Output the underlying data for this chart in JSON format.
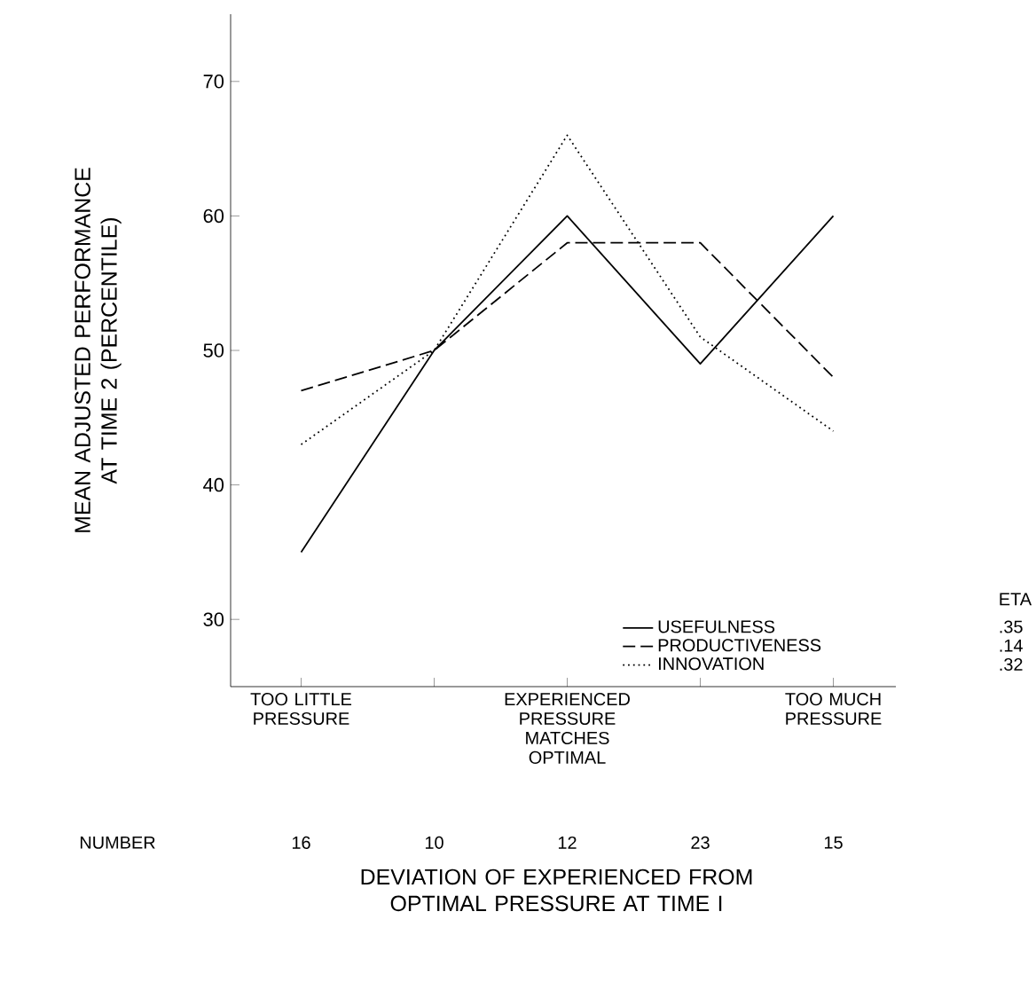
{
  "chart_data": {
    "type": "line",
    "xlabel": "DEVIATION OF EXPERIENCED FROM OPTIMAL PRESSURE AT TIME I",
    "ylabel": "MEAN ADJUSTED PERFORMANCE AT TIME 2 (PERCENTILE)",
    "categories": [
      "TOO LITTLE PRESSURE",
      null,
      "EXPERIENCED PRESSURE MATCHES OPTIMAL",
      null,
      "TOO MUCH PRESSURE"
    ],
    "series": [
      {
        "name": "USEFULNESS",
        "color": "#000000",
        "line_style": "solid",
        "values": [
          35,
          50,
          60,
          49,
          60
        ]
      },
      {
        "name": "PRODUCTIVENESS",
        "color": "#000000",
        "line_style": "dashed",
        "values": [
          47,
          50,
          58,
          58,
          48
        ]
      },
      {
        "name": "INNOVATION",
        "color": "#000000",
        "line_style": "dotted",
        "values": [
          43,
          50,
          66,
          51,
          44
        ]
      }
    ],
    "ylim": [
      25,
      75
    ],
    "yticks": [
      30,
      40,
      50,
      60,
      70
    ],
    "legend": "bottom right",
    "grid": false,
    "marker": "none",
    "annotations": [
      "NUMBER",
      "16",
      "10",
      "12",
      "23",
      "15",
      "ETA",
      ".35",
      ".14",
      ".32"
    ]
  }
}
